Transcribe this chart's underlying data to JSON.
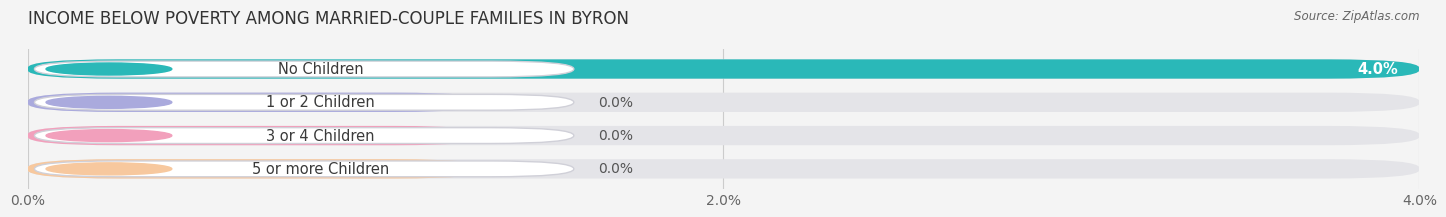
{
  "title": "INCOME BELOW POVERTY AMONG MARRIED-COUPLE FAMILIES IN BYRON",
  "source": "Source: ZipAtlas.com",
  "categories": [
    "No Children",
    "1 or 2 Children",
    "3 or 4 Children",
    "5 or more Children"
  ],
  "values": [
    4.0,
    0.0,
    0.0,
    0.0
  ],
  "bar_colors": [
    "#2ab8b8",
    "#aaaadd",
    "#f2a0bc",
    "#f7c89e"
  ],
  "xlim_max": 4.0,
  "xticks": [
    0.0,
    2.0,
    4.0
  ],
  "xtick_labels": [
    "0.0%",
    "2.0%",
    "4.0%"
  ],
  "background_color": "#f4f4f4",
  "bar_bg_color": "#e4e4e8",
  "title_fontsize": 12,
  "tick_fontsize": 10,
  "label_fontsize": 10.5
}
